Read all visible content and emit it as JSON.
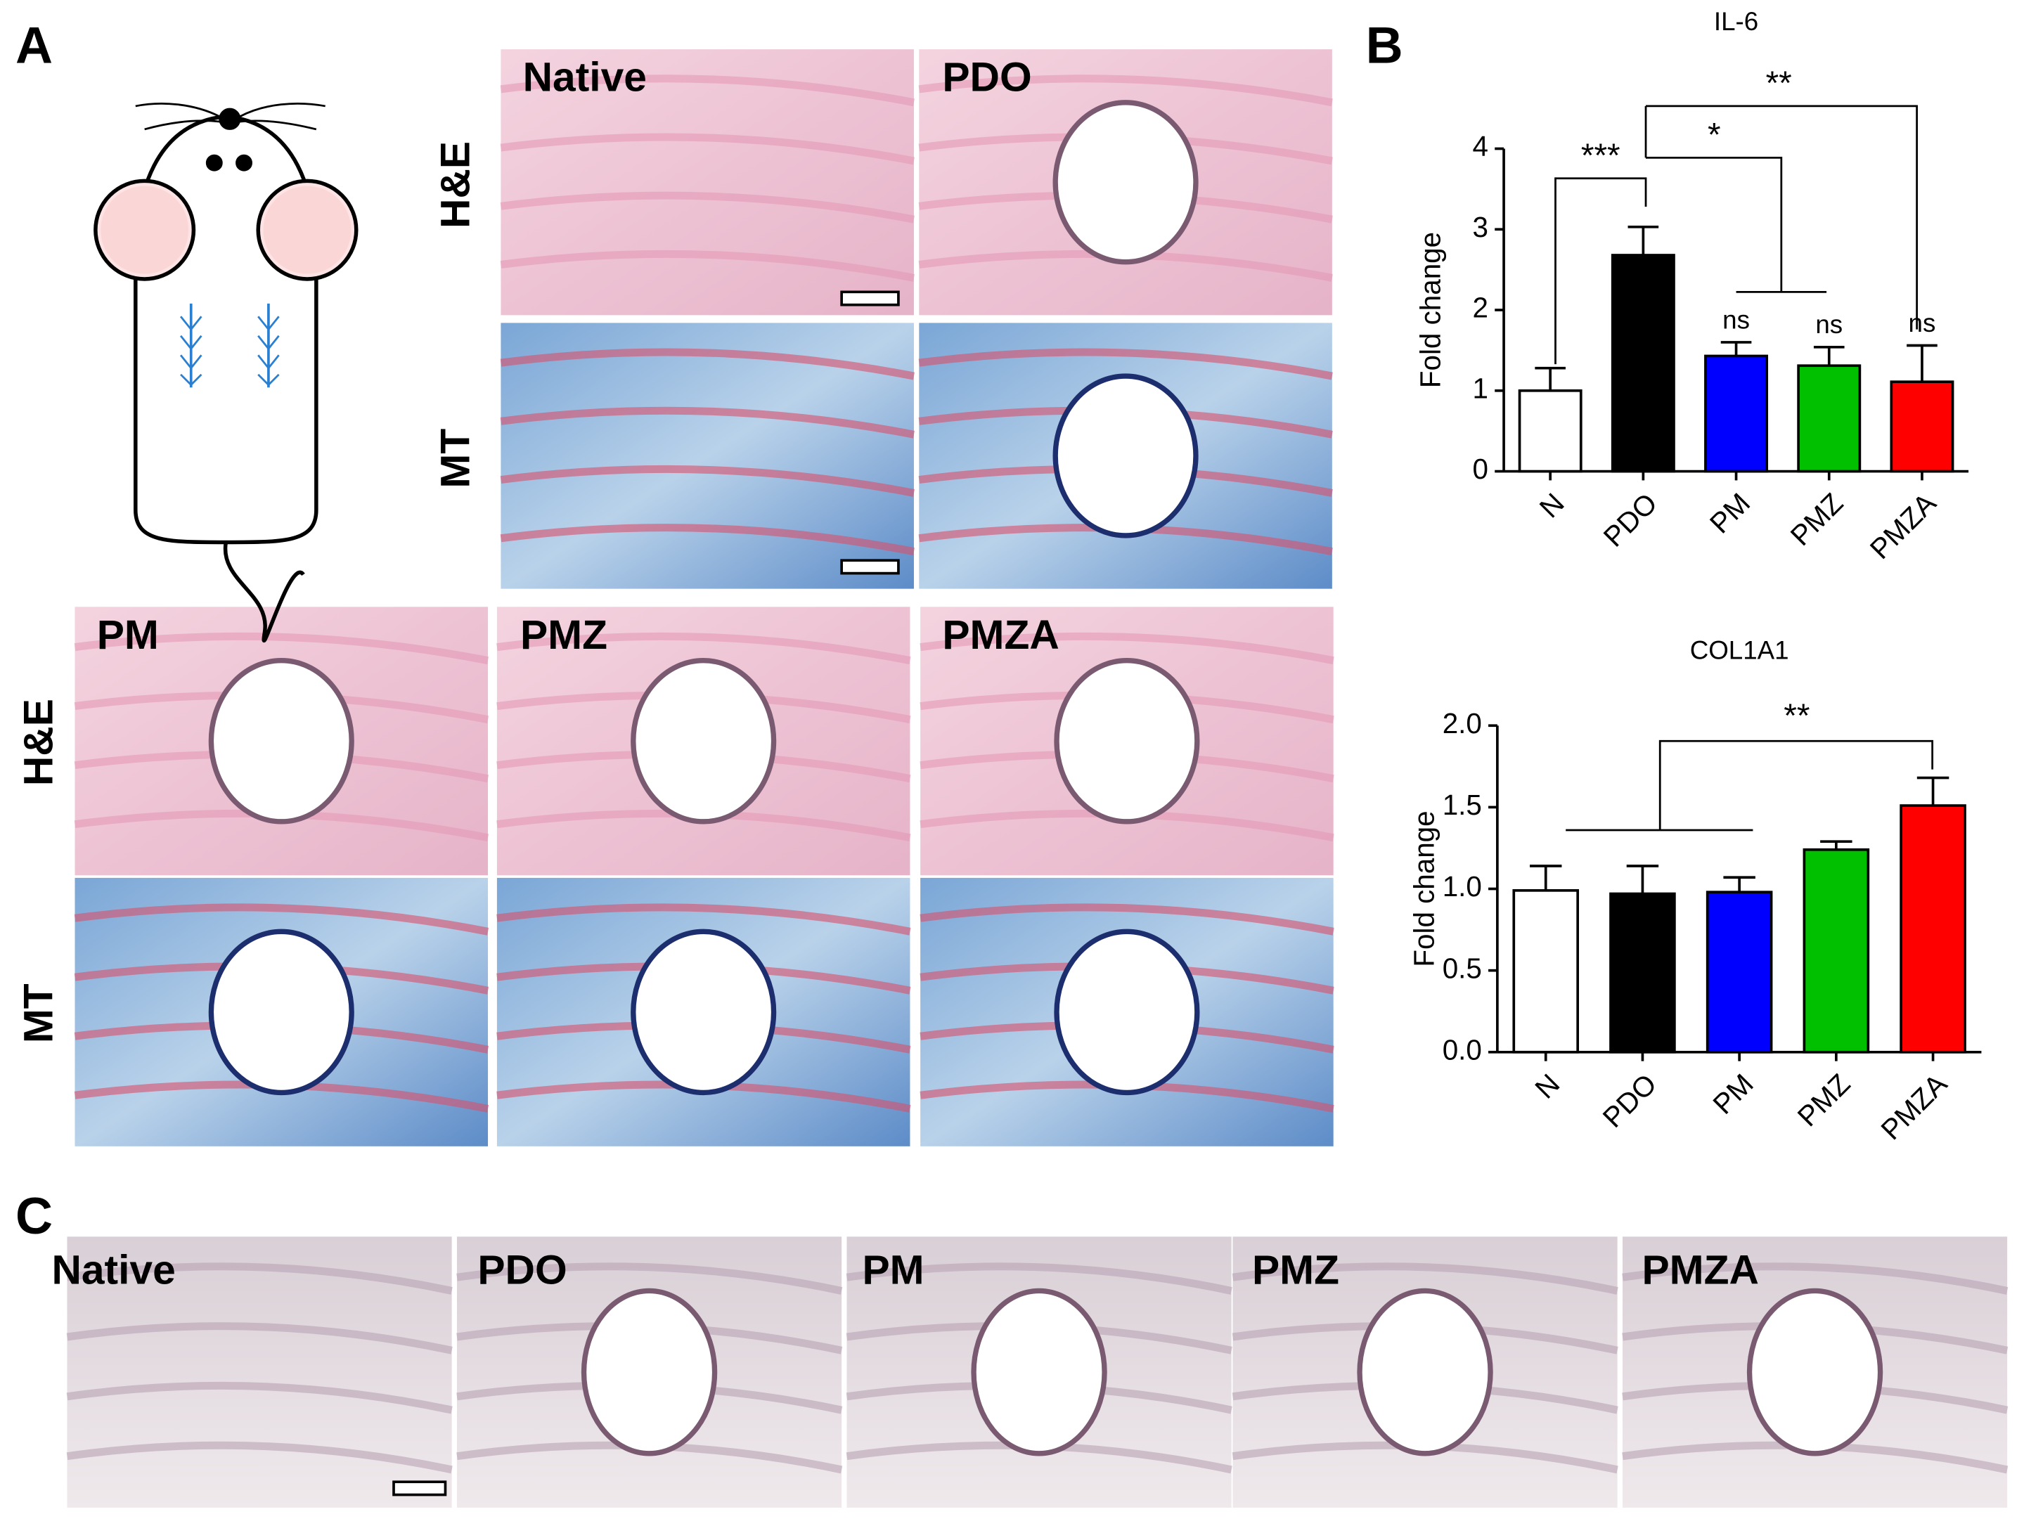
{
  "panels": {
    "a": "A",
    "b": "B",
    "c": "C"
  },
  "panel_a": {
    "top_columns": [
      "Native",
      "PDO"
    ],
    "top_rows": [
      "H&E",
      "MT"
    ],
    "bottom_columns": [
      "PM",
      "PMZ",
      "PMZA"
    ],
    "bottom_rows": [
      "H&E",
      "MT"
    ]
  },
  "panel_c": {
    "columns": [
      "Native",
      "PDO",
      "PM",
      "PMZ",
      "PMZA"
    ]
  },
  "chart_data": [
    {
      "type": "bar",
      "title": "IL-6",
      "y_label": "Fold change",
      "categories": [
        "N",
        "PDO",
        "PM",
        "PMZ",
        "PMZA"
      ],
      "values": [
        1.0,
        2.68,
        1.43,
        1.31,
        1.11
      ],
      "errors": [
        0.28,
        0.35,
        0.17,
        0.23,
        0.45
      ],
      "colors": [
        "#ffffff",
        "#000000",
        "#0000ff",
        "#00c000",
        "#ff0000"
      ],
      "ylim": [
        0,
        4
      ],
      "yticks": [
        0,
        1,
        2,
        3,
        4
      ],
      "annotations": [
        "***",
        "*",
        "**",
        "ns",
        "ns",
        "ns"
      ]
    },
    {
      "type": "bar",
      "title": "COL1A1",
      "y_label": "Fold change",
      "categories": [
        "N",
        "PDO",
        "PM",
        "PMZ",
        "PMZA"
      ],
      "values": [
        0.99,
        0.97,
        0.98,
        1.24,
        1.51
      ],
      "errors": [
        0.15,
        0.17,
        0.09,
        0.05,
        0.17
      ],
      "colors": [
        "#ffffff",
        "#000000",
        "#0000ff",
        "#00c000",
        "#ff0000"
      ],
      "ylim": [
        0,
        2
      ],
      "yticks": [
        {
          "value": 0,
          "label": "0.0"
        },
        {
          "value": 0.5,
          "label": "0.5"
        },
        {
          "value": 1,
          "label": "1.0"
        },
        {
          "value": 1.5,
          "label": "1.5"
        },
        {
          "value": 2,
          "label": "2.0"
        }
      ],
      "annotations": [
        "**"
      ]
    }
  ]
}
